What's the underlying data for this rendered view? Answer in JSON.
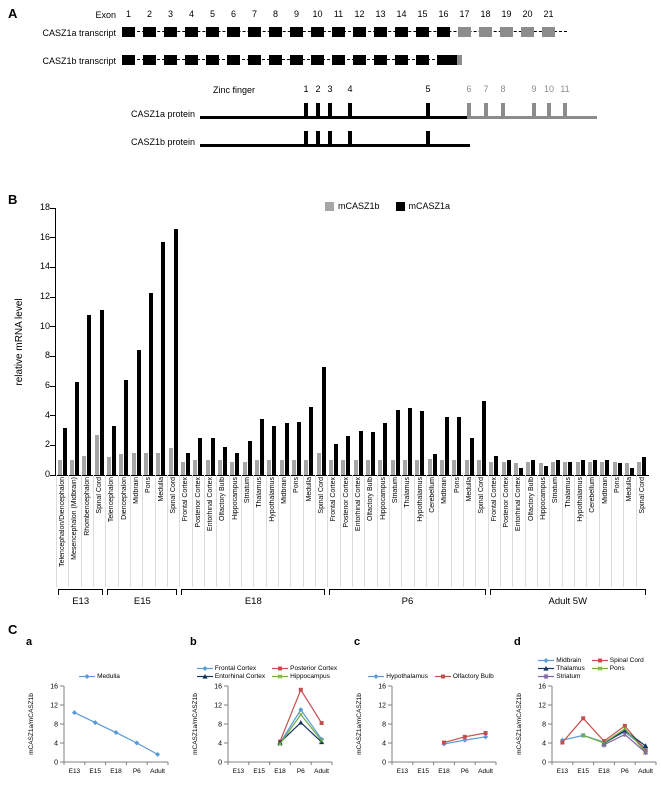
{
  "figure": {
    "panelA_letter": "A",
    "panelB_letter": "B",
    "panelC_letter": "C"
  },
  "panelA": {
    "exon_row_label": "Exon",
    "exons": [
      "1",
      "2",
      "3",
      "4",
      "5",
      "6",
      "7",
      "8",
      "9",
      "10",
      "11",
      "12",
      "13",
      "14",
      "15",
      "16",
      "17",
      "18",
      "19",
      "20",
      "21"
    ],
    "transcripts": [
      {
        "label": "CASZ1a transcript",
        "black_exons": 16,
        "gray_exons": 5
      },
      {
        "label": "CASZ1b transcript",
        "black_exons": 16,
        "gray_exons": 0
      }
    ],
    "zinc_finger_label": "Zinc finger",
    "zinc_fingers": [
      "1",
      "2",
      "3",
      "4",
      "5",
      "6",
      "7",
      "8",
      "9",
      "10",
      "11"
    ],
    "proteins": [
      {
        "label": "CASZ1a protein",
        "black_fingers": 5,
        "gray_fingers": 6
      },
      {
        "label": "CASZ1b protein",
        "black_fingers": 5,
        "gray_fingers": 0
      }
    ],
    "colors": {
      "black": "#000000",
      "gray": "#8c8c8c"
    }
  },
  "chart_data": [
    {
      "panel": "B",
      "type": "bar",
      "title": "",
      "ylabel": "relative mRNA level",
      "ylim": [
        0,
        18
      ],
      "ytick_step": 2,
      "grid": false,
      "legend_position": "top",
      "series_legend": [
        {
          "name": "mCASZ1b",
          "color": "#a6a6a6"
        },
        {
          "name": "mCASZ1a",
          "color": "#000000"
        }
      ],
      "groups": [
        {
          "stage": "E13",
          "categories": [
            "Telencephalon/Diencephalon",
            "Mesencephalon (Midbrain)",
            "Rhombencephalon",
            "Spinal Cord"
          ],
          "mCASZ1b": [
            1.0,
            1.0,
            1.3,
            2.7
          ],
          "mCASZ1a": [
            3.2,
            6.3,
            10.8,
            11.1
          ]
        },
        {
          "stage": "E15",
          "categories": [
            "Telencephalon",
            "Diencephalon",
            "Midbrain",
            "Pons",
            "Medulla",
            "Spinal Cord"
          ],
          "mCASZ1b": [
            1.2,
            1.4,
            1.5,
            1.5,
            1.5,
            1.8
          ],
          "mCASZ1a": [
            3.3,
            6.4,
            8.4,
            12.3,
            15.7,
            16.6
          ]
        },
        {
          "stage": "E18",
          "categories": [
            "Frontal Cortex",
            "Posterior Cortex",
            "Entorhinal Cortex",
            "Olfactory Bulb",
            "Hippocampus",
            "Striatum",
            "Thalamus",
            "Hypothalamus",
            "Midbrain",
            "Pons",
            "Medulla",
            "Spinal Cord"
          ],
          "mCASZ1b": [
            0.9,
            1.0,
            1.0,
            1.0,
            0.9,
            0.9,
            1.0,
            1.0,
            1.0,
            1.0,
            1.0,
            1.5
          ],
          "mCASZ1a": [
            1.5,
            2.5,
            2.5,
            1.9,
            1.5,
            2.3,
            3.8,
            3.3,
            3.5,
            3.6,
            4.6,
            7.3
          ]
        },
        {
          "stage": "P6",
          "categories": [
            "Frontal Cortex",
            "Posterior Cortex",
            "Entorhinal Cortex",
            "Olfactory Bulb",
            "Hippocampus",
            "Striatum",
            "Thalamus",
            "Hypothalamus",
            "Cerebellum",
            "Midbrain",
            "Pons",
            "Medulla",
            "Spinal Cord"
          ],
          "mCASZ1b": [
            1.0,
            1.0,
            1.0,
            1.0,
            1.0,
            1.0,
            1.0,
            1.0,
            1.1,
            1.0,
            1.0,
            1.0,
            1.0
          ],
          "mCASZ1a": [
            2.1,
            2.6,
            3.0,
            2.9,
            3.5,
            4.4,
            4.5,
            4.3,
            1.4,
            3.9,
            3.9,
            2.5,
            5.0
          ]
        },
        {
          "stage": "Adult 5W",
          "categories": [
            "Frontal Cortex",
            "Posterior Cortex",
            "Entorhinal Cortex",
            "Olfactory Bulb",
            "Hippocampus",
            "Striatum",
            "Thalamus",
            "Hypothalamus",
            "Cerebellum",
            "Midbrain",
            "Pons",
            "Medulla",
            "Spinal Cord"
          ],
          "mCASZ1b": [
            0.9,
            0.9,
            0.8,
            0.9,
            0.8,
            0.9,
            0.9,
            0.9,
            0.9,
            0.9,
            0.9,
            0.8,
            0.9
          ],
          "mCASZ1a": [
            1.3,
            1.0,
            0.5,
            1.0,
            0.6,
            1.0,
            0.9,
            1.0,
            1.0,
            1.0,
            0.8,
            0.5,
            1.2
          ]
        }
      ]
    },
    {
      "panel": "a",
      "type": "line",
      "ylabel": "mCASZ1a/mCASZ1b",
      "ylim": [
        0,
        16
      ],
      "yticks": [
        0,
        4,
        8,
        12,
        16
      ],
      "x": [
        "E13",
        "E15",
        "E18",
        "P6",
        "Adult"
      ],
      "series": [
        {
          "name": "Medulla",
          "color": "#5b9bd5",
          "marker": "diamond",
          "values": [
            10.4,
            8.3,
            6.2,
            4.0,
            1.6
          ]
        }
      ]
    },
    {
      "panel": "b",
      "type": "line",
      "ylabel": "mCASZ1a/mCASZ1b",
      "ylim": [
        0,
        16
      ],
      "yticks": [
        0,
        4,
        8,
        12,
        16
      ],
      "x": [
        "E13",
        "E15",
        "E18",
        "P6",
        "Adult"
      ],
      "series": [
        {
          "name": "Frontal Cortex",
          "color": "#5b9bd5",
          "marker": "diamond",
          "values": [
            null,
            null,
            4.0,
            11.0,
            4.8
          ]
        },
        {
          "name": "Posterior Cortex",
          "color": "#c0504d",
          "marker": "square",
          "values": [
            null,
            null,
            4.3,
            15.2,
            8.2
          ]
        },
        {
          "name": "Entorhinal Cortex",
          "color": "#17365d",
          "marker": "triangle",
          "values": [
            null,
            null,
            4.1,
            8.3,
            4.2
          ]
        },
        {
          "name": "Hippocampus",
          "color": "#70ad47",
          "marker": "x",
          "values": [
            null,
            null,
            3.8,
            10.0,
            4.5
          ]
        }
      ]
    },
    {
      "panel": "c",
      "type": "line",
      "ylabel": "mCASZ1a/mCASZ1b",
      "ylim": [
        0,
        16
      ],
      "yticks": [
        0,
        4,
        8,
        12,
        16
      ],
      "x": [
        "E13",
        "E15",
        "E18",
        "P6",
        "Adult"
      ],
      "series": [
        {
          "name": "Hypothalamus",
          "color": "#5b9bd5",
          "marker": "diamond",
          "values": [
            null,
            null,
            3.8,
            4.6,
            5.3
          ]
        },
        {
          "name": "Olfactory Bulb",
          "color": "#c0504d",
          "marker": "square",
          "values": [
            null,
            null,
            4.1,
            5.3,
            6.1
          ]
        }
      ]
    },
    {
      "panel": "d",
      "type": "line",
      "ylabel": "mCASZ1a/mCASZ1b",
      "ylim": [
        0,
        16
      ],
      "yticks": [
        0,
        4,
        8,
        12,
        16
      ],
      "x": [
        "E13",
        "E15",
        "E18",
        "P6",
        "Adult"
      ],
      "series": [
        {
          "name": "Midbrain",
          "color": "#5b9bd5",
          "marker": "diamond",
          "values": [
            4.6,
            5.6,
            4.2,
            6.3,
            2.9
          ]
        },
        {
          "name": "Spinal Cord",
          "color": "#c0504d",
          "marker": "square",
          "values": [
            4.1,
            9.2,
            4.4,
            7.6,
            2.4
          ]
        },
        {
          "name": "Thalamus",
          "color": "#17365d",
          "marker": "triangle",
          "values": [
            null,
            null,
            3.9,
            6.6,
            3.4
          ]
        },
        {
          "name": "Pons",
          "color": "#70ad47",
          "marker": "x",
          "values": [
            null,
            5.6,
            4.0,
            7.0,
            2.2
          ]
        },
        {
          "name": "Striatum",
          "color": "#8064a2",
          "marker": "asterisk",
          "values": [
            null,
            null,
            3.6,
            5.8,
            2.0
          ]
        }
      ]
    }
  ]
}
